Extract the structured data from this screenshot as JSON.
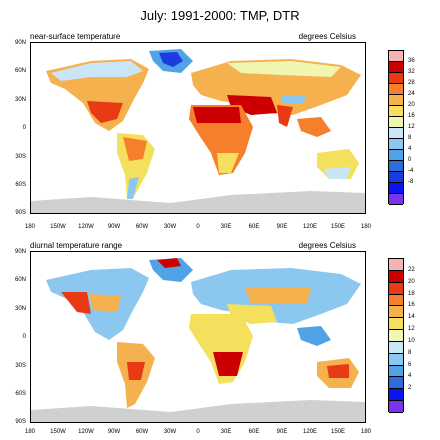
{
  "title": "July: 1991-2000: TMP, DTR",
  "lon_ticks": [
    "180",
    "150W",
    "120W",
    "90W",
    "60W",
    "30W",
    "0",
    "30E",
    "60E",
    "90E",
    "120E",
    "150E",
    "180"
  ],
  "lat_ticks": [
    "90N",
    "60N",
    "30N",
    "0",
    "30S",
    "60S",
    "90S"
  ],
  "panels": [
    {
      "label_left": "near-surface temperature",
      "label_right": "degrees Celsius",
      "colorbar": {
        "colors": [
          "#f5b3b3",
          "#cc0000",
          "#e83a14",
          "#f57f2a",
          "#f5b14d",
          "#f5e05d",
          "#f0f5b0",
          "#c8e6f5",
          "#8cc7f0",
          "#50a3e6",
          "#2d6cd9",
          "#1a3ce0",
          "#0a14f0",
          "#7a33f0"
        ],
        "labels": [
          "36",
          "32",
          "28",
          "24",
          "20",
          "16",
          "12",
          "8",
          "4",
          "0",
          "-4",
          "-8"
        ]
      }
    },
    {
      "label_left": "diurnal temperature range",
      "label_right": "degrees Celsius",
      "colorbar": {
        "colors": [
          "#f5b3b3",
          "#cc0000",
          "#e83a14",
          "#f57f2a",
          "#f5b14d",
          "#f5e05d",
          "#f0f5b0",
          "#c8e6f5",
          "#8cc7f0",
          "#50a3e6",
          "#2d6cd9",
          "#0a14f0",
          "#7a33f0"
        ],
        "labels": [
          "22",
          "20",
          "18",
          "16",
          "14",
          "12",
          "10",
          "8",
          "6",
          "4",
          "2"
        ]
      }
    }
  ]
}
